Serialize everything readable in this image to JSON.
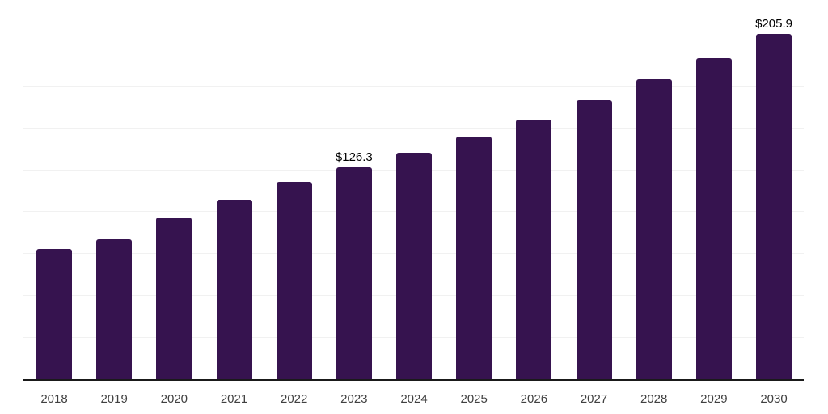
{
  "chart_data": {
    "type": "bar",
    "title": "",
    "xlabel": "",
    "ylabel": "",
    "categories": [
      "2018",
      "2019",
      "2020",
      "2021",
      "2022",
      "2023",
      "2024",
      "2025",
      "2026",
      "2027",
      "2028",
      "2029",
      "2030"
    ],
    "values": [
      77.7,
      83.3,
      96.2,
      107.2,
      117.6,
      126.3,
      134.8,
      144.4,
      154.6,
      166.4,
      178.6,
      191.4,
      205.9
    ],
    "point_labels": [
      "",
      "",
      "",
      "",
      "",
      "$126.3",
      "",
      "",
      "",
      "",
      "",
      "",
      "$205.9"
    ],
    "ylim": [
      0,
      225
    ],
    "gridline_step": 25,
    "grid_on": true,
    "legend": "none",
    "colors": {
      "bar": "#36134F",
      "gridline": "#F1F1F1",
      "axis_line": "#1A1A1A",
      "tick_label": "#404040",
      "value_label": "#000000",
      "background": "#FFFFFF"
    }
  }
}
